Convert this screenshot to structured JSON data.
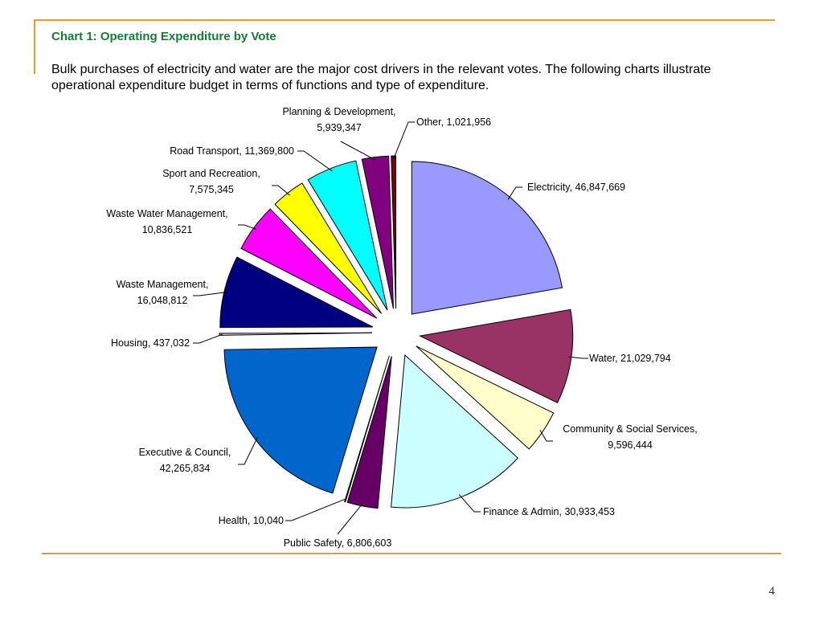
{
  "slide": {
    "title": "Chart 1: Operating Expenditure by Vote",
    "body": "Bulk purchases of electricity and water are the major cost drivers in the relevant votes. The following charts illustrate operational expenditure budget in terms of functions and type of expenditure.",
    "page_number": "4"
  },
  "colors": {
    "accent_rule": "#d4a52a",
    "title": "#1a7a3a"
  },
  "chart_data": {
    "type": "pie",
    "exploded": true,
    "start_angle": "12 o'clock, clockwise",
    "slices": [
      {
        "label": "Electricity",
        "value": 46847669,
        "display": "46,847,669",
        "color": "#9999ff"
      },
      {
        "label": "Water",
        "value": 21029794,
        "display": "21,029,794",
        "color": "#993366"
      },
      {
        "label": "Community & Social Services",
        "value": 9596444,
        "display": "9,596,444",
        "color": "#ffffcc"
      },
      {
        "label": "Finance & Admin",
        "value": 30933453,
        "display": "30,933,453",
        "color": "#ccffff"
      },
      {
        "label": "Public Safety",
        "value": 6806603,
        "display": "6,806,603",
        "color": "#660066"
      },
      {
        "label": "Health",
        "value": 10040,
        "display": "10,040",
        "color": "#ff8080"
      },
      {
        "label": "Executive & Council",
        "value": 42265834,
        "display": "42,265,834",
        "color": "#0066cc"
      },
      {
        "label": "Housing",
        "value": 437032,
        "display": "437,032",
        "color": "#ccccff"
      },
      {
        "label": "Waste Management",
        "value": 16048812,
        "display": "16,048,812",
        "color": "#000080"
      },
      {
        "label": "Waste Water Management",
        "value": 10836521,
        "display": "10,836,521",
        "color": "#ff00ff"
      },
      {
        "label": "Sport and Recreation",
        "value": 7575345,
        "display": "7,575,345",
        "color": "#ffff00"
      },
      {
        "label": "Road Transport",
        "value": 11369800,
        "display": "11,369,800",
        "color": "#00ffff"
      },
      {
        "label": "Planning & Development",
        "value": 5939347,
        "display": "5,939,347",
        "color": "#800080"
      },
      {
        "label": "Other",
        "value": 1021956,
        "display": "1,021,956",
        "color": "#800000"
      }
    ]
  }
}
